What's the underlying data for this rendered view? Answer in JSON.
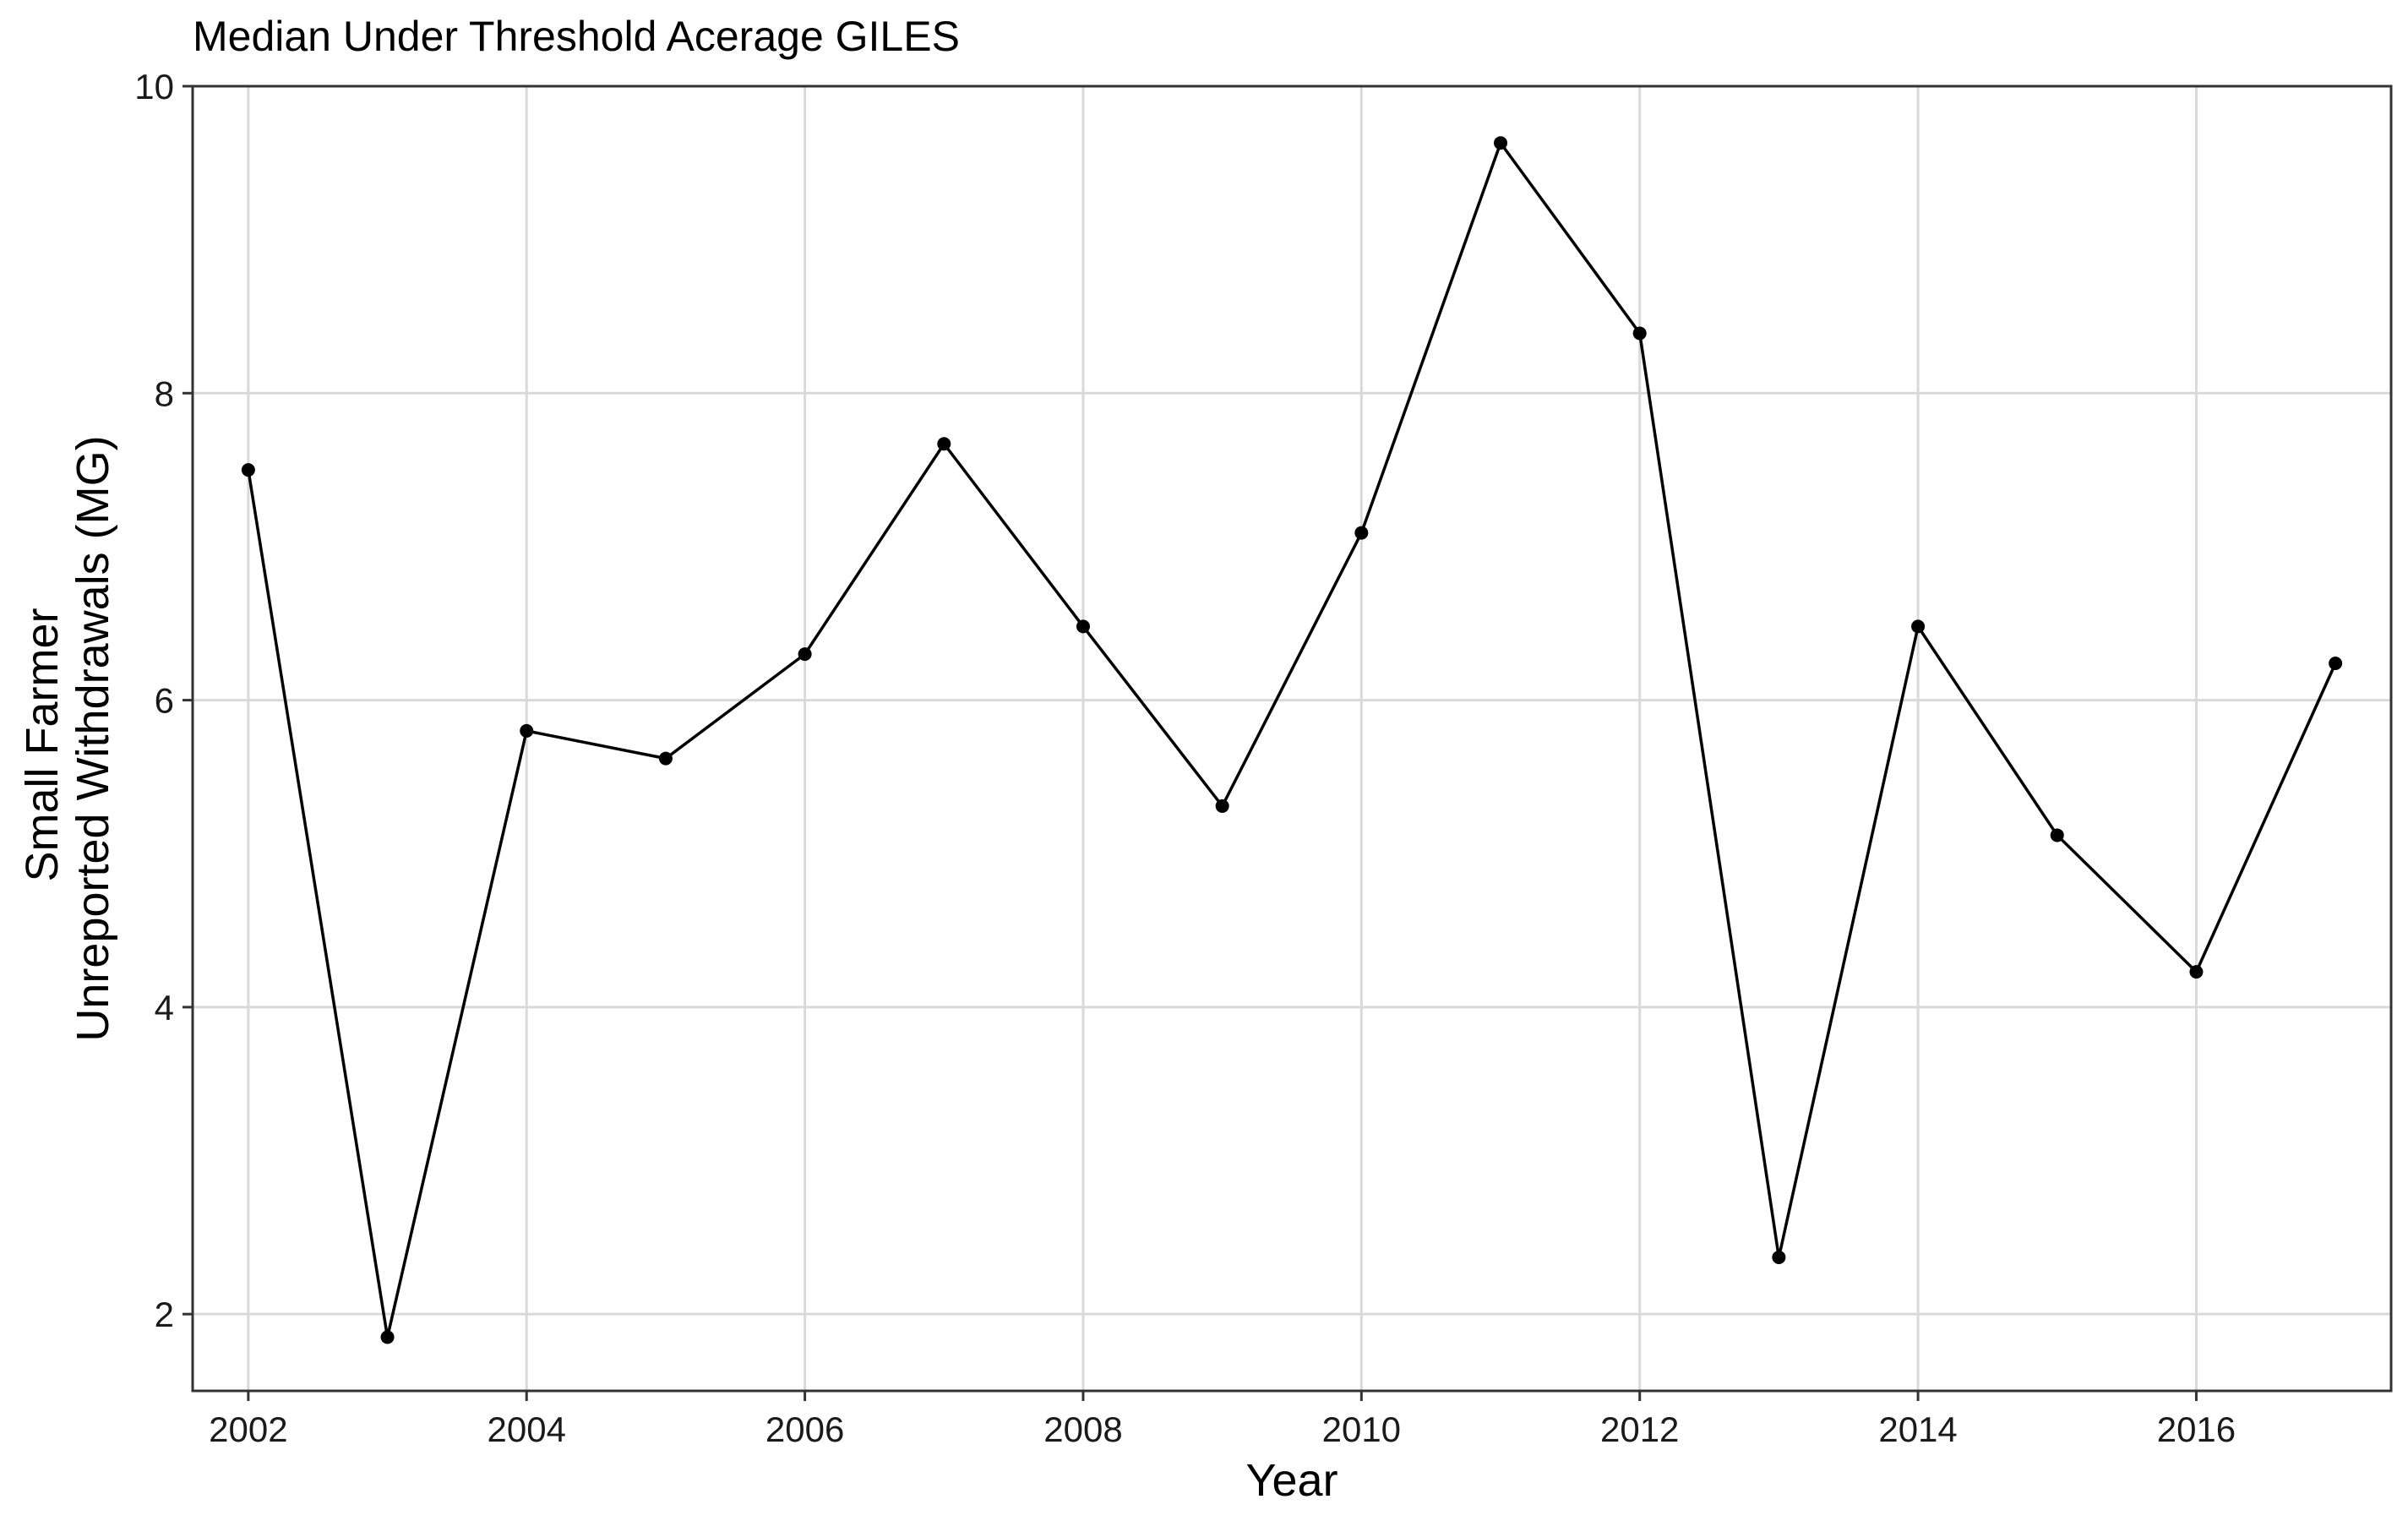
{
  "chart_data": {
    "type": "line",
    "title": "Median Under Threshold Acerage GILES",
    "xlabel": "Year",
    "ylabel_lines": [
      "Small Farmer",
      "Unreported Withdrawals (MG)"
    ],
    "xlim": [
      2001.6,
      2017.4
    ],
    "ylim": [
      1.5,
      10.0
    ],
    "x_ticks": [
      2002,
      2004,
      2006,
      2008,
      2010,
      2012,
      2014,
      2016
    ],
    "y_ticks": [
      2,
      4,
      6,
      8,
      10
    ],
    "grid": true,
    "x": [
      2002,
      2003,
      2004,
      2005,
      2006,
      2007,
      2008,
      2009,
      2010,
      2011,
      2012,
      2013,
      2014,
      2015,
      2016,
      2017
    ],
    "y": [
      7.5,
      1.85,
      5.8,
      5.62,
      6.3,
      7.67,
      6.48,
      5.31,
      7.09,
      9.63,
      8.39,
      2.37,
      6.48,
      5.12,
      4.23,
      6.24
    ],
    "colors": {
      "line": "#000000",
      "point": "#000000",
      "grid": "#d9d9d9",
      "border": "#333333"
    }
  }
}
